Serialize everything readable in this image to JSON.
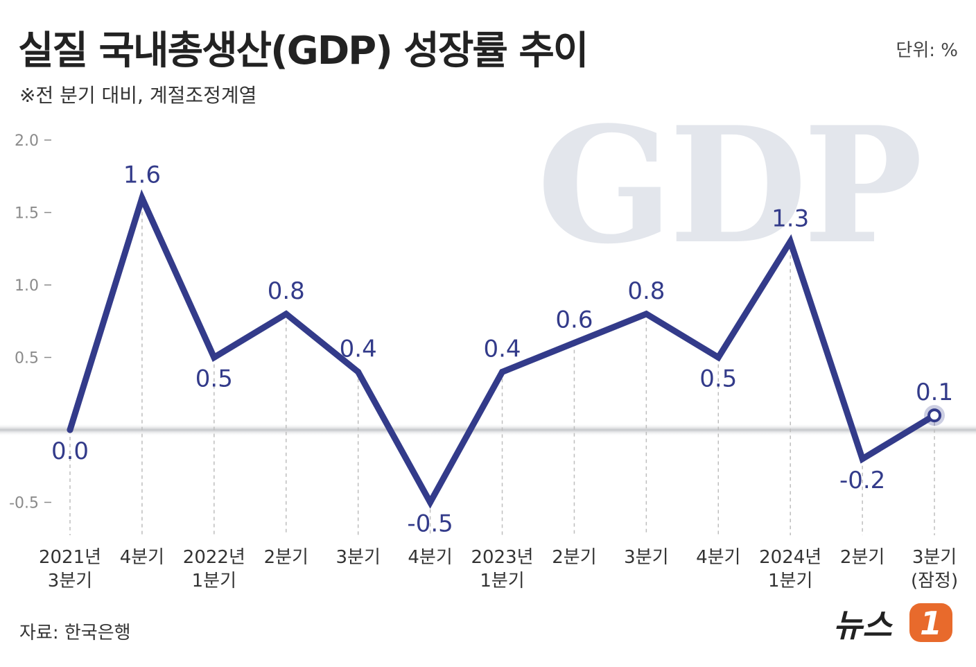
{
  "header": {
    "title": "실질 국내총생산(GDP) 성장률 추이",
    "unit": "단위: %",
    "subtitle": "※전 분기 대비, 계절조정계열"
  },
  "footer": {
    "source": "자료: 한국은행",
    "brand_text": "뉴스",
    "brand_mark": "1"
  },
  "watermark": "GDP",
  "colors": {
    "line": "#333b8a",
    "axis_text": "#8a8a8a",
    "baseline": "#c4c6c9",
    "watermark": "#e3e6ec",
    "brand_orange": "#e86a2c",
    "brand_text": "#222222"
  },
  "chart_data": {
    "type": "line",
    "title": "실질 국내총생산(GDP) 성장률 추이",
    "ylabel": "%",
    "ylim": [
      -0.5,
      2.0
    ],
    "yticks": [
      "2.0",
      "1.5",
      "1.0",
      "0.5",
      "-0.5"
    ],
    "ytick_values": [
      2.0,
      1.5,
      1.0,
      0.5,
      -0.5
    ],
    "categories": [
      [
        "2021년",
        "3분기"
      ],
      [
        "4분기"
      ],
      [
        "2022년",
        "1분기"
      ],
      [
        "2분기"
      ],
      [
        "3분기"
      ],
      [
        "4분기"
      ],
      [
        "2023년",
        "1분기"
      ],
      [
        "2분기"
      ],
      [
        "3분기"
      ],
      [
        "4분기"
      ],
      [
        "2024년",
        "1분기"
      ],
      [
        "2분기"
      ],
      [
        "3분기",
        "(잠정)"
      ]
    ],
    "series": [
      {
        "name": "실질 GDP 성장률",
        "values": [
          0.0,
          1.6,
          0.5,
          0.8,
          0.4,
          -0.5,
          0.4,
          0.6,
          0.8,
          0.5,
          1.3,
          -0.2,
          0.1
        ],
        "labels": [
          "0.0",
          "1.6",
          "0.5",
          "0.8",
          "0.4",
          "-0.5",
          "0.4",
          "0.6",
          "0.8",
          "0.5",
          "1.3",
          "-0.2",
          "0.1"
        ]
      }
    ],
    "highlight_last_point": true
  }
}
